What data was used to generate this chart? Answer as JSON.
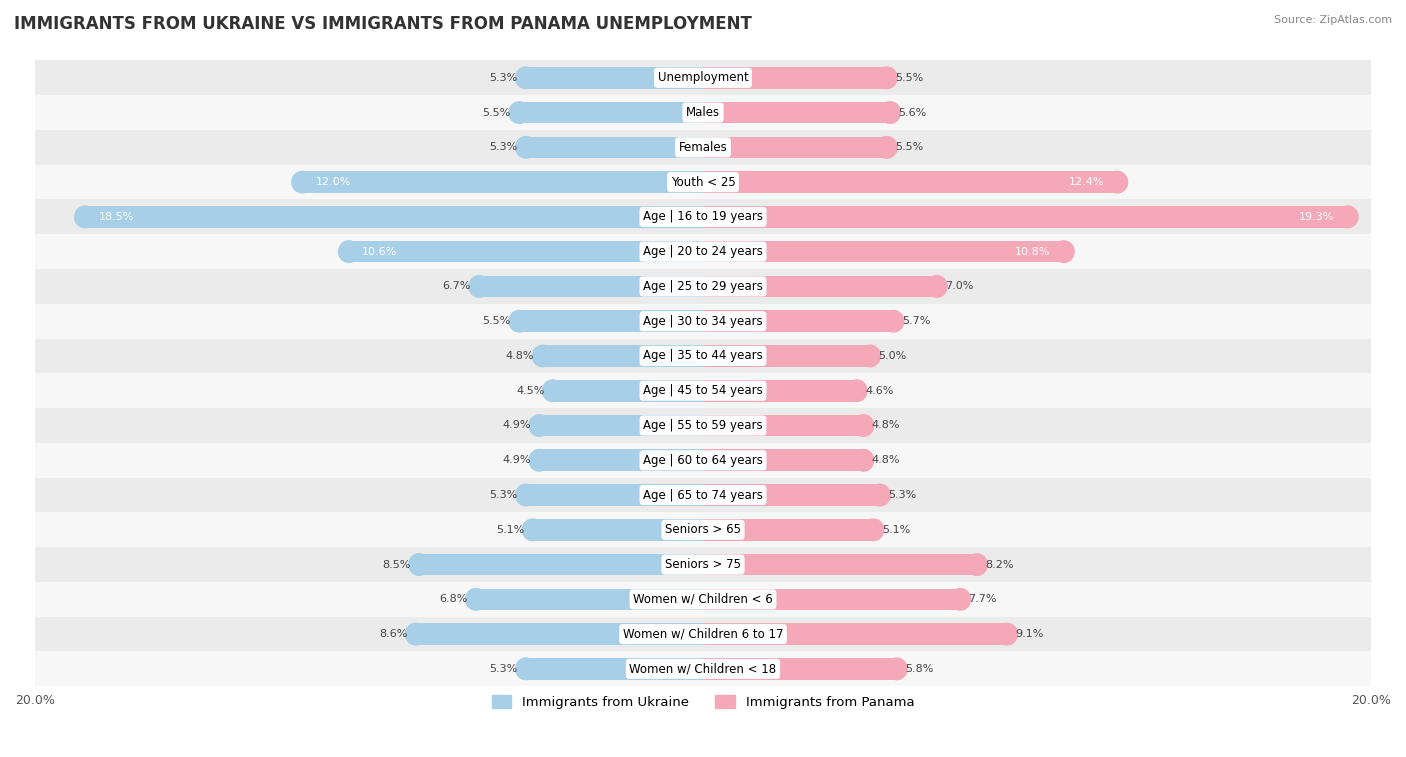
{
  "title": "IMMIGRANTS FROM UKRAINE VS IMMIGRANTS FROM PANAMA UNEMPLOYMENT",
  "source": "Source: ZipAtlas.com",
  "categories": [
    "Unemployment",
    "Males",
    "Females",
    "Youth < 25",
    "Age | 16 to 19 years",
    "Age | 20 to 24 years",
    "Age | 25 to 29 years",
    "Age | 30 to 34 years",
    "Age | 35 to 44 years",
    "Age | 45 to 54 years",
    "Age | 55 to 59 years",
    "Age | 60 to 64 years",
    "Age | 65 to 74 years",
    "Seniors > 65",
    "Seniors > 75",
    "Women w/ Children < 6",
    "Women w/ Children 6 to 17",
    "Women w/ Children < 18"
  ],
  "ukraine_values": [
    5.3,
    5.5,
    5.3,
    12.0,
    18.5,
    10.6,
    6.7,
    5.5,
    4.8,
    4.5,
    4.9,
    4.9,
    5.3,
    5.1,
    8.5,
    6.8,
    8.6,
    5.3
  ],
  "panama_values": [
    5.5,
    5.6,
    5.5,
    12.4,
    19.3,
    10.8,
    7.0,
    5.7,
    5.0,
    4.6,
    4.8,
    4.8,
    5.3,
    5.1,
    8.2,
    7.7,
    9.1,
    5.8
  ],
  "ukraine_color": "#a8cfe8",
  "panama_color": "#f4a8b8",
  "ukraine_label": "Immigrants from Ukraine",
  "panama_label": "Immigrants from Panama",
  "x_max": 20.0,
  "bar_height": 0.62,
  "bg_color_odd": "#ebebeb",
  "bg_color_even": "#f7f7f7",
  "title_fontsize": 12,
  "label_fontsize": 8.5,
  "value_fontsize": 8.0,
  "legend_fontsize": 9.5
}
